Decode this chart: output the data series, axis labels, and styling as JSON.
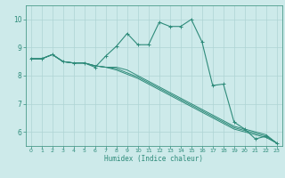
{
  "xlabel": "Humidex (Indice chaleur)",
  "bg_color": "#cdeaea",
  "grid_color": "#aed4d4",
  "line_color": "#2e8b7a",
  "spine_color": "#4a9a8a",
  "xlim": [
    -0.5,
    23.5
  ],
  "ylim": [
    5.5,
    10.5
  ],
  "xticks": [
    0,
    1,
    2,
    3,
    4,
    5,
    6,
    7,
    8,
    9,
    10,
    11,
    12,
    13,
    14,
    15,
    16,
    17,
    18,
    19,
    20,
    21,
    22,
    23
  ],
  "yticks": [
    6,
    7,
    8,
    9,
    10
  ],
  "series": [
    [
      8.6,
      8.6,
      8.75,
      8.5,
      8.45,
      8.45,
      8.3,
      8.7,
      9.05,
      9.5,
      9.1,
      9.1,
      9.9,
      9.75,
      9.75,
      10.0,
      9.2,
      7.65,
      7.7,
      6.35,
      6.1,
      5.75,
      5.85,
      5.6
    ],
    [
      8.6,
      8.6,
      8.75,
      8.5,
      8.45,
      8.45,
      8.35,
      8.3,
      8.2,
      8.05,
      7.9,
      7.7,
      7.5,
      7.3,
      7.1,
      6.9,
      6.7,
      6.5,
      6.3,
      6.1,
      6.0,
      5.9,
      5.8,
      5.6
    ],
    [
      8.6,
      8.6,
      8.75,
      8.5,
      8.45,
      8.45,
      8.35,
      8.3,
      8.25,
      8.1,
      7.95,
      7.75,
      7.55,
      7.35,
      7.15,
      6.95,
      6.75,
      6.55,
      6.35,
      6.15,
      6.05,
      5.95,
      5.85,
      5.6
    ],
    [
      8.6,
      8.6,
      8.75,
      8.5,
      8.45,
      8.45,
      8.35,
      8.3,
      8.3,
      8.2,
      8.0,
      7.8,
      7.6,
      7.4,
      7.2,
      7.0,
      6.8,
      6.6,
      6.4,
      6.2,
      6.1,
      6.0,
      5.9,
      5.6
    ]
  ]
}
